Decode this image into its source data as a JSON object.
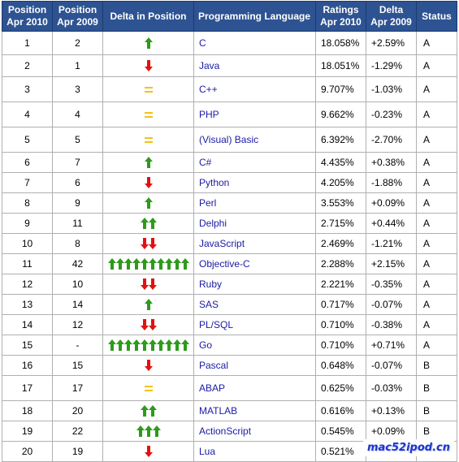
{
  "headers": {
    "pos2010": [
      "Position",
      "Apr 2010"
    ],
    "pos2009": [
      "Position",
      "Apr 2009"
    ],
    "delta_pos": "Delta in Position",
    "language": "Programming Language",
    "ratings": [
      "Ratings",
      "Apr 2010"
    ],
    "delta": [
      "Delta",
      "Apr 2009"
    ],
    "status": "Status"
  },
  "colors": {
    "header_bg": "#2e5392",
    "up": "#2e9a1c",
    "down": "#e41010",
    "equal": "#f2c21b",
    "language_link": "#1a1aa6"
  },
  "rows": [
    {
      "pos2010": "1",
      "pos2009": "2",
      "change": "up",
      "count": 1,
      "language": "C",
      "rating": "18.058%",
      "delta": "+2.59%",
      "status": "A",
      "height": 29
    },
    {
      "pos2010": "2",
      "pos2009": "1",
      "change": "down",
      "count": 1,
      "language": "Java",
      "rating": "18.051%",
      "delta": "-1.29%",
      "status": "A",
      "height": 27
    },
    {
      "pos2010": "3",
      "pos2009": "3",
      "change": "equal",
      "count": 1,
      "language": "C++",
      "rating": "9.707%",
      "delta": "-1.03%",
      "status": "A",
      "height": 31
    },
    {
      "pos2010": "4",
      "pos2009": "4",
      "change": "equal",
      "count": 1,
      "language": "PHP",
      "rating": "9.662%",
      "delta": "-0.23%",
      "status": "A",
      "height": 31
    },
    {
      "pos2010": "5",
      "pos2009": "5",
      "change": "equal",
      "count": 1,
      "language": "(Visual) Basic",
      "rating": "6.392%",
      "delta": "-2.70%",
      "status": "A",
      "height": 31
    },
    {
      "pos2010": "6",
      "pos2009": "7",
      "change": "up",
      "count": 1,
      "language": "C#",
      "rating": "4.435%",
      "delta": "+0.38%",
      "status": "A",
      "height": 25
    },
    {
      "pos2010": "7",
      "pos2009": "6",
      "change": "down",
      "count": 1,
      "language": "Python",
      "rating": "4.205%",
      "delta": "-1.88%",
      "status": "A",
      "height": 25
    },
    {
      "pos2010": "8",
      "pos2009": "9",
      "change": "up",
      "count": 1,
      "language": "Perl",
      "rating": "3.553%",
      "delta": "+0.09%",
      "status": "A",
      "height": 25
    },
    {
      "pos2010": "9",
      "pos2009": "11",
      "change": "up",
      "count": 2,
      "language": "Delphi",
      "rating": "2.715%",
      "delta": "+0.44%",
      "status": "A",
      "height": 25
    },
    {
      "pos2010": "10",
      "pos2009": "8",
      "change": "down",
      "count": 2,
      "language": "JavaScript",
      "rating": "2.469%",
      "delta": "-1.21%",
      "status": "A",
      "height": 25
    },
    {
      "pos2010": "11",
      "pos2009": "42",
      "change": "up",
      "count": 10,
      "language": "Objective-C",
      "rating": "2.288%",
      "delta": "+2.15%",
      "status": "A",
      "height": 25
    },
    {
      "pos2010": "12",
      "pos2009": "10",
      "change": "down",
      "count": 2,
      "language": "Ruby",
      "rating": "2.221%",
      "delta": "-0.35%",
      "status": "A",
      "height": 25
    },
    {
      "pos2010": "13",
      "pos2009": "14",
      "change": "up",
      "count": 1,
      "language": "SAS",
      "rating": "0.717%",
      "delta": "-0.07%",
      "status": "A",
      "height": 25
    },
    {
      "pos2010": "14",
      "pos2009": "12",
      "change": "down",
      "count": 2,
      "language": "PL/SQL",
      "rating": "0.710%",
      "delta": "-0.38%",
      "status": "A",
      "height": 25
    },
    {
      "pos2010": "15",
      "pos2009": "-",
      "change": "up",
      "count": 10,
      "language": "Go",
      "rating": "0.710%",
      "delta": "+0.71%",
      "status": "A",
      "height": 25
    },
    {
      "pos2010": "16",
      "pos2009": "15",
      "change": "down",
      "count": 1,
      "language": "Pascal",
      "rating": "0.648%",
      "delta": "-0.07%",
      "status": "B",
      "height": 25
    },
    {
      "pos2010": "17",
      "pos2009": "17",
      "change": "equal",
      "count": 1,
      "language": "ABAP",
      "rating": "0.625%",
      "delta": "-0.03%",
      "status": "B",
      "height": 31
    },
    {
      "pos2010": "18",
      "pos2009": "20",
      "change": "up",
      "count": 2,
      "language": "MATLAB",
      "rating": "0.616%",
      "delta": "+0.13%",
      "status": "B",
      "height": 25
    },
    {
      "pos2010": "19",
      "pos2009": "22",
      "change": "up",
      "count": 3,
      "language": "ActionScript",
      "rating": "0.545%",
      "delta": "+0.09%",
      "status": "B",
      "height": 25
    },
    {
      "pos2010": "20",
      "pos2009": "19",
      "change": "down",
      "count": 1,
      "language": "Lua",
      "rating": "0.521%",
      "delta": "-0.09%",
      "status": "B",
      "height": 25
    }
  ],
  "watermark": "mac52ipod.cn"
}
